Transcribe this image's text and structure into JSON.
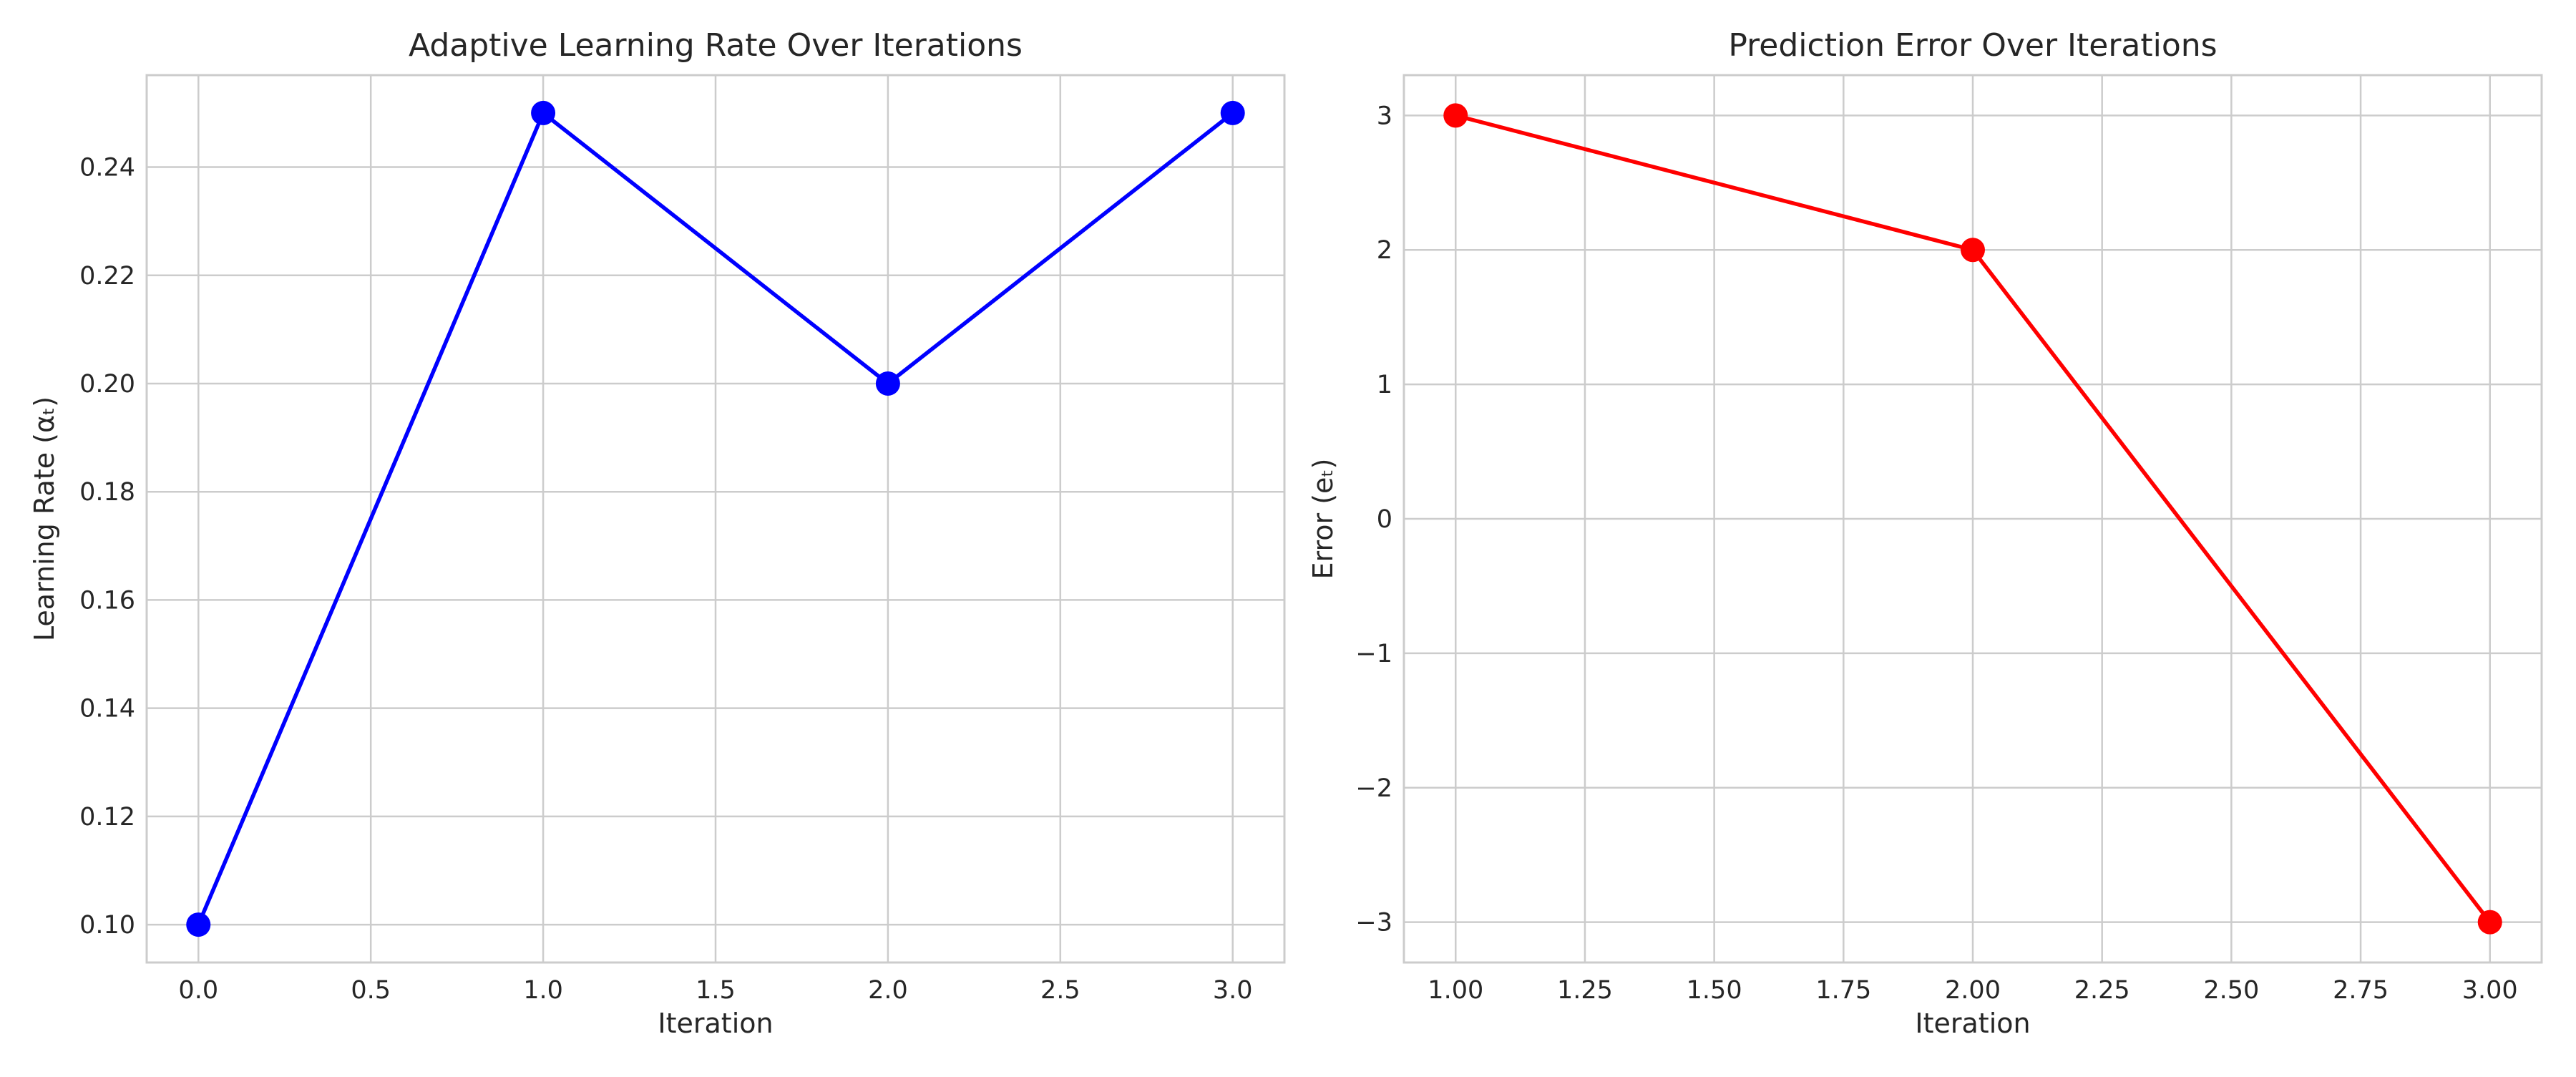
{
  "chart_data": [
    {
      "type": "line",
      "title": "Adaptive Learning Rate Over Iterations",
      "xlabel": "Iteration",
      "ylabel": "Learning Rate (αₜ)",
      "x": [
        0,
        1,
        2,
        3
      ],
      "series": [
        {
          "values": [
            0.1,
            0.25,
            0.2,
            0.25
          ],
          "color": "#0000ff",
          "marker": "circle"
        }
      ],
      "xlim": [
        -0.15,
        3.15
      ],
      "ylim": [
        0.093,
        0.257
      ],
      "xticks": [
        0.0,
        0.5,
        1.0,
        1.5,
        2.0,
        2.5,
        3.0
      ],
      "xtick_labels": [
        "0.0",
        "0.5",
        "1.0",
        "1.5",
        "2.0",
        "2.5",
        "3.0"
      ],
      "yticks": [
        0.1,
        0.12,
        0.14,
        0.16,
        0.18,
        0.2,
        0.22,
        0.24
      ],
      "ytick_labels": [
        "0.10",
        "0.12",
        "0.14",
        "0.16",
        "0.18",
        "0.20",
        "0.22",
        "0.24"
      ],
      "grid": true
    },
    {
      "type": "line",
      "title": "Prediction Error Over Iterations",
      "xlabel": "Iteration",
      "ylabel": "Error (eₜ)",
      "x": [
        1,
        2,
        3
      ],
      "series": [
        {
          "values": [
            3,
            2,
            -3
          ],
          "color": "#ff0000",
          "marker": "circle"
        }
      ],
      "xlim": [
        0.9,
        3.1
      ],
      "ylim": [
        -3.3,
        3.3
      ],
      "xticks": [
        1.0,
        1.25,
        1.5,
        1.75,
        2.0,
        2.25,
        2.5,
        2.75,
        3.0
      ],
      "xtick_labels": [
        "1.00",
        "1.25",
        "1.50",
        "1.75",
        "2.00",
        "2.25",
        "2.50",
        "2.75",
        "3.00"
      ],
      "yticks": [
        -3,
        -2,
        -1,
        0,
        1,
        2,
        3
      ],
      "ytick_labels": [
        "−3",
        "−2",
        "−1",
        "0",
        "1",
        "2",
        "3"
      ],
      "grid": true
    }
  ]
}
